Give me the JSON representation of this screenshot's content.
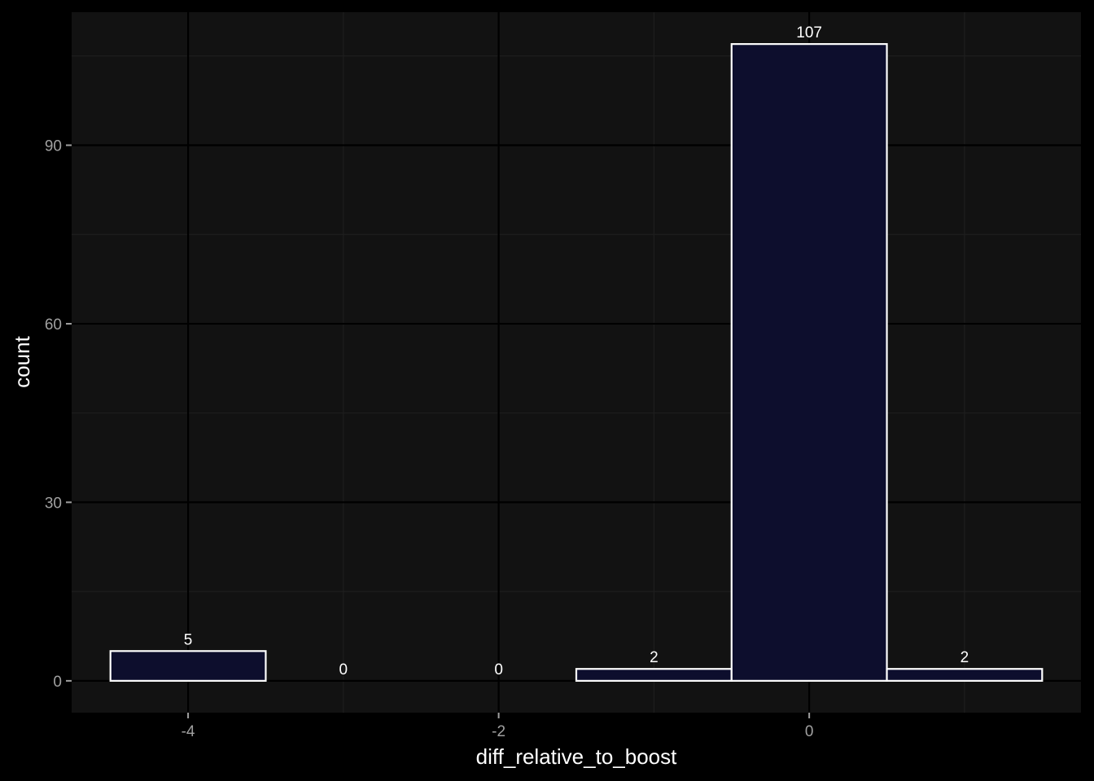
{
  "chart_data": {
    "type": "bar",
    "title": "",
    "xlabel": "diff_relative_to_boost",
    "ylabel": "count",
    "bins": [
      {
        "x": -4,
        "count": 5,
        "label": "5"
      },
      {
        "x": -3,
        "count": 0,
        "label": "0"
      },
      {
        "x": -2,
        "count": 0,
        "label": "0"
      },
      {
        "x": -1,
        "count": 2,
        "label": "2"
      },
      {
        "x": 0,
        "count": 107,
        "label": "107"
      },
      {
        "x": 1,
        "count": 2,
        "label": "2"
      }
    ],
    "x_ticks": [
      {
        "value": -4,
        "label": "-4"
      },
      {
        "value": -2,
        "label": "-2"
      },
      {
        "value": 0,
        "label": "0"
      }
    ],
    "y_ticks": [
      {
        "value": 0,
        "label": "0"
      },
      {
        "value": 30,
        "label": "30"
      },
      {
        "value": 60,
        "label": "60"
      },
      {
        "value": 90,
        "label": "90"
      }
    ],
    "xlim": [
      -4.75,
      1.75
    ],
    "ylim": [
      -5.35,
      112.35
    ],
    "bin_width": 1,
    "grid": true,
    "colors": {
      "background": "#000000",
      "panel": "#121212",
      "grid_major": "#000000",
      "grid_minor": "#1e1e1e",
      "bar_fill": "#0d0e2d",
      "bar_stroke": "#ffffff",
      "tick_text": "#a0a0a0",
      "axis_title": "#ffffff"
    }
  }
}
